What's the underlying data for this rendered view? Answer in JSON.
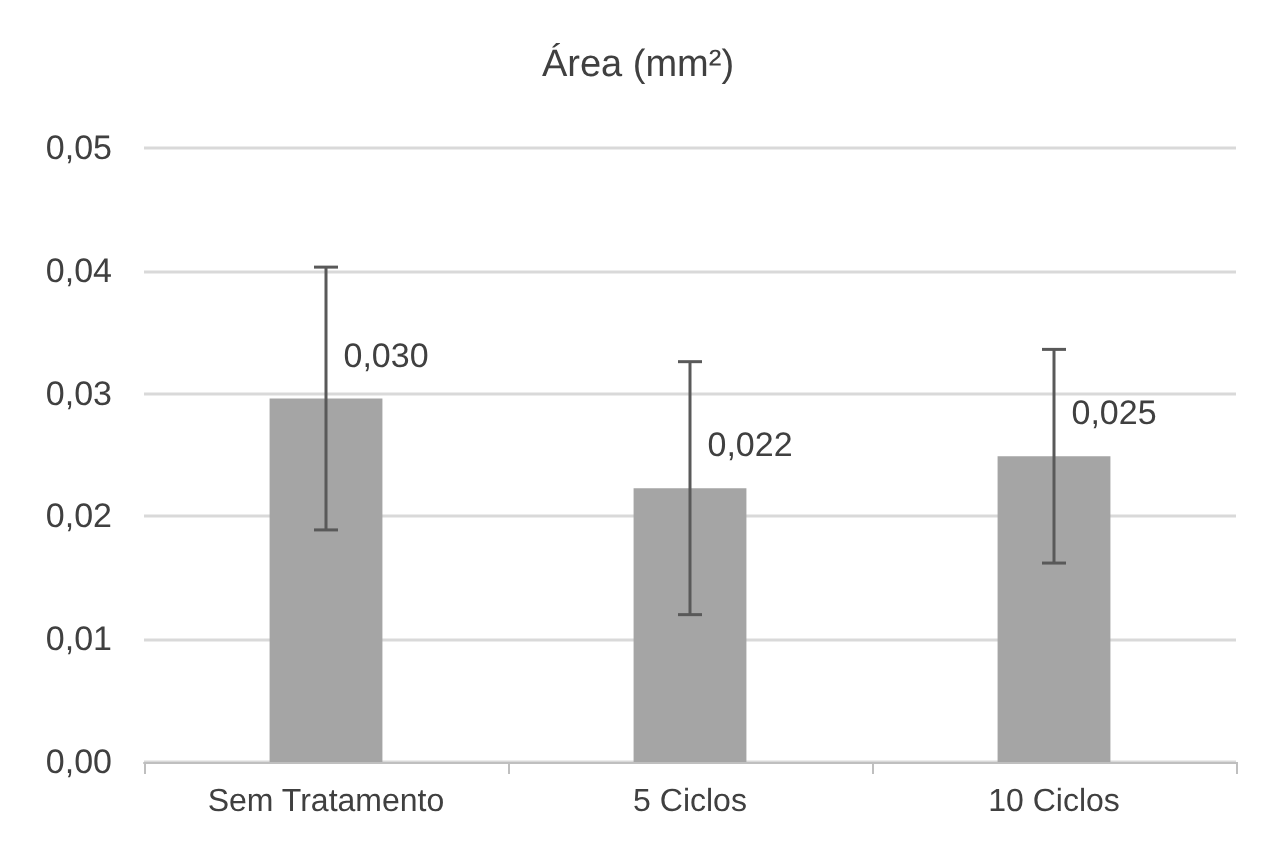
{
  "chart_data": {
    "type": "bar",
    "title": "Área (mm²)",
    "categories": [
      "Sem Tratamento",
      "5 Ciclos",
      "10 Ciclos"
    ],
    "values": [
      0.0296,
      0.0223,
      0.0249
    ],
    "value_labels": [
      "0,030",
      "0,022",
      "0,025"
    ],
    "errors": [
      0.0107,
      0.0103,
      0.0087
    ],
    "color": "#a5a5a5",
    "ylim": [
      0,
      0.05
    ],
    "yticks": [
      {
        "value": 0,
        "label": "0,00"
      },
      {
        "value": 0.01,
        "label": "0,01"
      },
      {
        "value": 0.02,
        "label": "0,02"
      },
      {
        "value": 0.03,
        "label": "0,03"
      },
      {
        "value": 0.04,
        "label": "0,04"
      },
      {
        "value": 0.05,
        "label": "0,05"
      }
    ],
    "grid": "y"
  }
}
